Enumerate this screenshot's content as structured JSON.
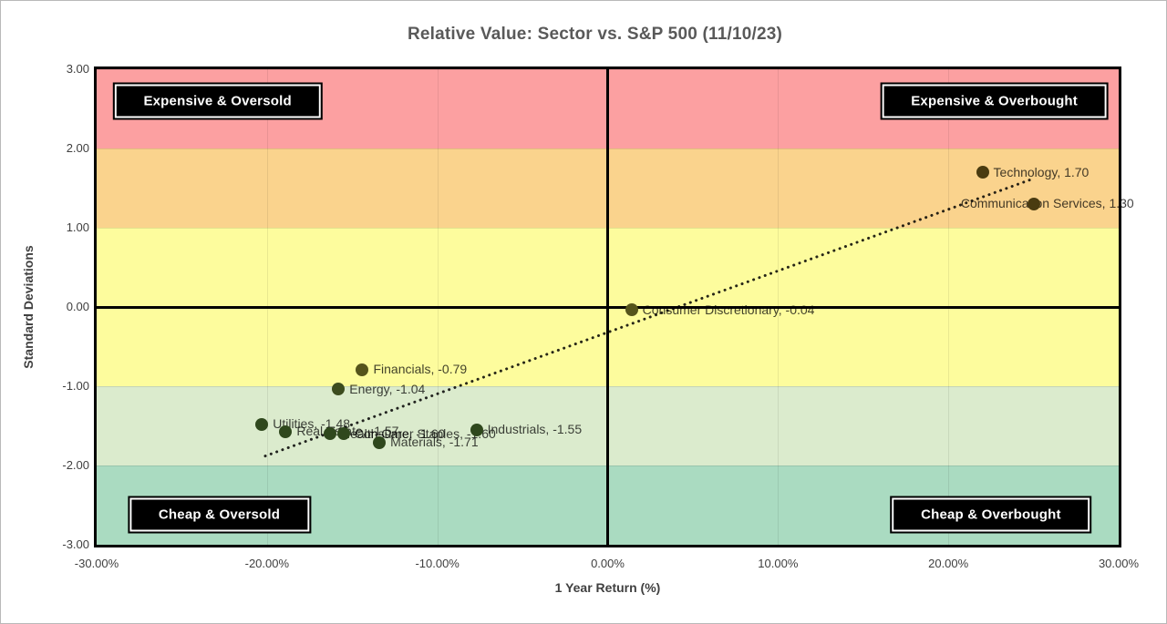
{
  "figure": {
    "background": "#ffffff",
    "border_color": "#b9b9b9"
  },
  "chart_data": {
    "type": "scatter",
    "title": "Relative Value: Sector vs. S&P 500 (11/10/23)",
    "xlabel": "1 Year Return (%)",
    "ylabel": "Standard Deviations",
    "xlim": [
      -30,
      30
    ],
    "ylim": [
      -3,
      3
    ],
    "x_ticks": [
      {
        "v": -30,
        "label": "-30.00%"
      },
      {
        "v": -20,
        "label": "-20.00%"
      },
      {
        "v": -10,
        "label": "-10.00%"
      },
      {
        "v": 0,
        "label": "0.00%"
      },
      {
        "v": 10,
        "label": "10.00%"
      },
      {
        "v": 20,
        "label": "20.00%"
      },
      {
        "v": 30,
        "label": "30.00%"
      }
    ],
    "y_ticks": [
      {
        "v": 3,
        "label": "3.00"
      },
      {
        "v": 2,
        "label": "2.00"
      },
      {
        "v": 1,
        "label": "1.00"
      },
      {
        "v": 0,
        "label": "0.00"
      },
      {
        "v": -1,
        "label": "-1.00"
      },
      {
        "v": -2,
        "label": "-2.00"
      },
      {
        "v": -3,
        "label": "-3.00"
      }
    ],
    "gridlines_x": [
      -20,
      -10,
      10,
      20
    ],
    "bands": [
      {
        "from": 2,
        "to": 3,
        "color": "#fca0a1"
      },
      {
        "from": 1,
        "to": 2,
        "color": "#fad38d"
      },
      {
        "from": -1,
        "to": 1,
        "color": "#fdfc9d"
      },
      {
        "from": -2,
        "to": -1,
        "color": "#dbebcd"
      },
      {
        "from": -3,
        "to": -2,
        "color": "#aadbc1"
      }
    ],
    "quadrants": [
      {
        "label": "Expensive & Oversold",
        "x": -22.9,
        "y": 2.6
      },
      {
        "label": "Expensive & Overbought",
        "x": 22.7,
        "y": 2.6
      },
      {
        "label": "Cheap & Oversold",
        "x": -22.8,
        "y": -2.62
      },
      {
        "label": "Cheap & Overbought",
        "x": 22.5,
        "y": -2.62
      }
    ],
    "points": [
      {
        "sector": "Technology",
        "return_pct": 22.0,
        "std_dev": 1.7,
        "label": "Technology, 1.70",
        "placement": "right",
        "dot_color": "#4a3b10"
      },
      {
        "sector": "Communication Services",
        "return_pct": 25.0,
        "std_dev": 1.3,
        "label": "Communication Services, 1.30",
        "placement": "center",
        "dot_color": "#4a3b10"
      },
      {
        "sector": "Consumer Discretionary",
        "return_pct": 1.4,
        "std_dev": -0.04,
        "label": "Consumer Discretionary, -0.04",
        "placement": "right",
        "dot_color": "#55541b"
      },
      {
        "sector": "Financials",
        "return_pct": -14.4,
        "std_dev": -0.79,
        "label": "Financials, -0.79",
        "placement": "right",
        "dot_color": "#55541b"
      },
      {
        "sector": "Energy",
        "return_pct": -15.8,
        "std_dev": -1.04,
        "label": "Energy, -1.04",
        "placement": "right",
        "dot_color": "#3c4c1e"
      },
      {
        "sector": "Utilities",
        "return_pct": -20.3,
        "std_dev": -1.48,
        "label": "Utilities, -1.48",
        "placement": "right",
        "dot_color": "#2f481d"
      },
      {
        "sector": "Real Estate",
        "return_pct": -18.9,
        "std_dev": -1.57,
        "label": "Real Estate, -1.57",
        "placement": "right",
        "dot_color": "#2f481d"
      },
      {
        "sector": "Health Care",
        "return_pct": -16.3,
        "std_dev": -1.6,
        "label": "Health Care, -1.60",
        "placement": "right",
        "dot_color": "#2f481d"
      },
      {
        "sector": "Consumer Staples",
        "return_pct": -15.5,
        "std_dev": -1.6,
        "label": "Consumer Staples, -1.60",
        "placement": "right",
        "dot_color": "#2f481d"
      },
      {
        "sector": "Industrials",
        "return_pct": -7.7,
        "std_dev": -1.55,
        "label": "Industrials, -1.55",
        "placement": "right",
        "dot_color": "#2f481d"
      },
      {
        "sector": "Materials",
        "return_pct": -13.4,
        "std_dev": -1.71,
        "label": "Materials, -1.71",
        "placement": "right",
        "dot_color": "#2f481d"
      }
    ],
    "trendline": {
      "style": "dotted",
      "color": "rgba(0,0,0,0.85)",
      "x1": -20.1,
      "y1": -1.88,
      "x2": 25.0,
      "y2": 1.62
    },
    "legend": "none",
    "grid": "on"
  }
}
